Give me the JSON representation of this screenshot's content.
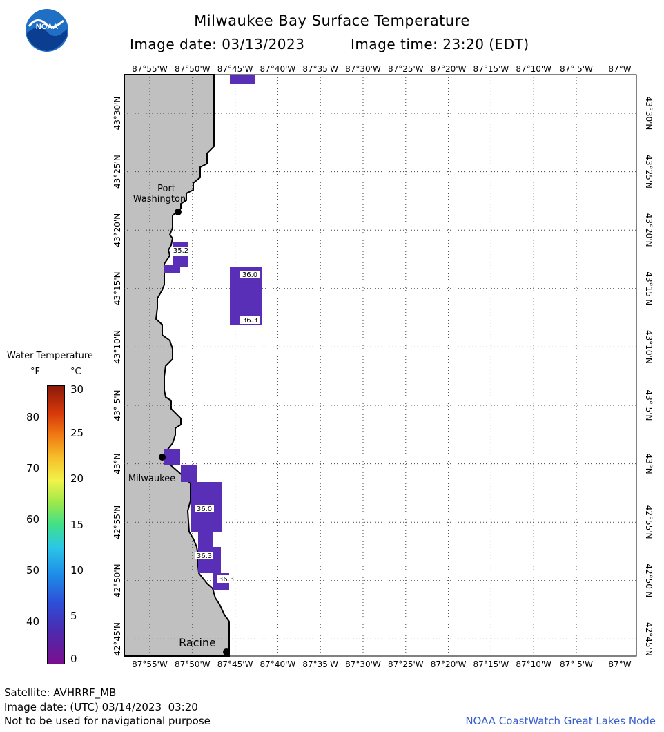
{
  "title": "Milwaukee Bay Surface Temperature",
  "image_date_label": "Image date: 03/13/2023",
  "image_time_label": "Image time: 23:20 (EDT)",
  "logo_text": "NOAA",
  "lon_labels": [
    "87°55'W",
    "87°50'W",
    "87°45'W",
    "87°40'W",
    "87°35'W",
    "87°30'W",
    "87°25'W",
    "87°20'W",
    "87°15'W",
    "87°10'W",
    "87° 5'W",
    "87°W"
  ],
  "lat_labels": [
    "43°30'N",
    "43°25'N",
    "43°20'N",
    "43°15'N",
    "43°10'N",
    "43° 5'N",
    "43°N",
    "42°55'N",
    "42°50'N",
    "42°45'N"
  ],
  "cities": [
    {
      "name_line1": "Port",
      "name_line2": "Washington"
    },
    {
      "name_line1": "Milwaukee",
      "name_line2": ""
    },
    {
      "name_line1": "Racine",
      "name_line2": ""
    }
  ],
  "temp_labels": [
    "35.2",
    "36.0",
    "36.3",
    "36.0",
    "36.3",
    "36.3"
  ],
  "legend": {
    "title": "Water Temperature",
    "unit_f": "°F",
    "unit_c": "°C",
    "f_ticks": [
      "80",
      "70",
      "60",
      "50",
      "40"
    ],
    "c_ticks": [
      "30",
      "25",
      "20",
      "15",
      "10",
      "5",
      "0"
    ]
  },
  "footer": {
    "satellite": "Satellite: AVHRRF_MB",
    "utc_date": "Image date: (UTC) 03/14/2023  03:20",
    "disclaimer": "Not to be used for navigational purpose",
    "credit": "NOAA CoastWatch Great Lakes Node"
  },
  "colors": {
    "land": "#c0c0c0",
    "water": "#ffffff",
    "pixel": "#5a2fb8",
    "grid": "#444444"
  }
}
